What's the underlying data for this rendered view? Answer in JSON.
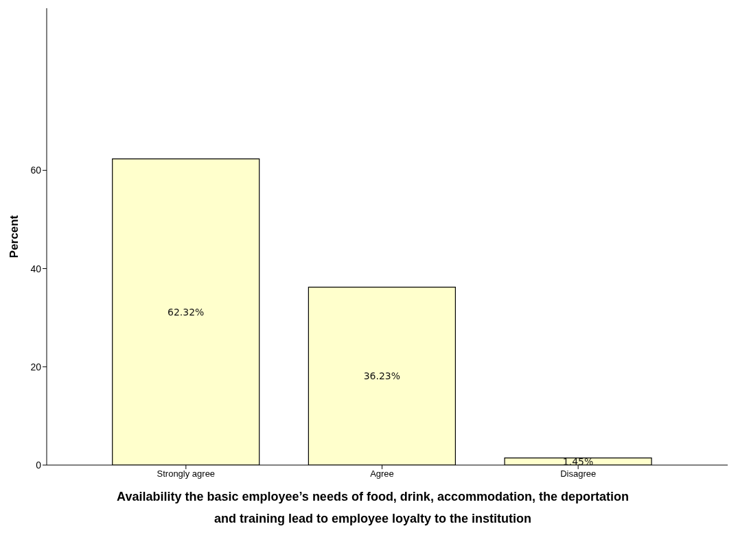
{
  "chart_data": {
    "type": "bar",
    "xlabel": "Availability the basic employee’s needs of food, drink, accommodation, the deportation and training lead to employee loyalty to the institution",
    "ylabel": "Percent",
    "categories": [
      "Strongly agree",
      "Agree",
      "Disagree"
    ],
    "values": [
      62.32,
      36.23,
      1.45
    ],
    "value_labels": [
      "62.32%",
      "36.23%",
      "1.45%"
    ],
    "color": "#ffffcc",
    "ylim": [
      0,
      93
    ],
    "yticks": [
      0,
      20,
      40,
      60
    ]
  }
}
